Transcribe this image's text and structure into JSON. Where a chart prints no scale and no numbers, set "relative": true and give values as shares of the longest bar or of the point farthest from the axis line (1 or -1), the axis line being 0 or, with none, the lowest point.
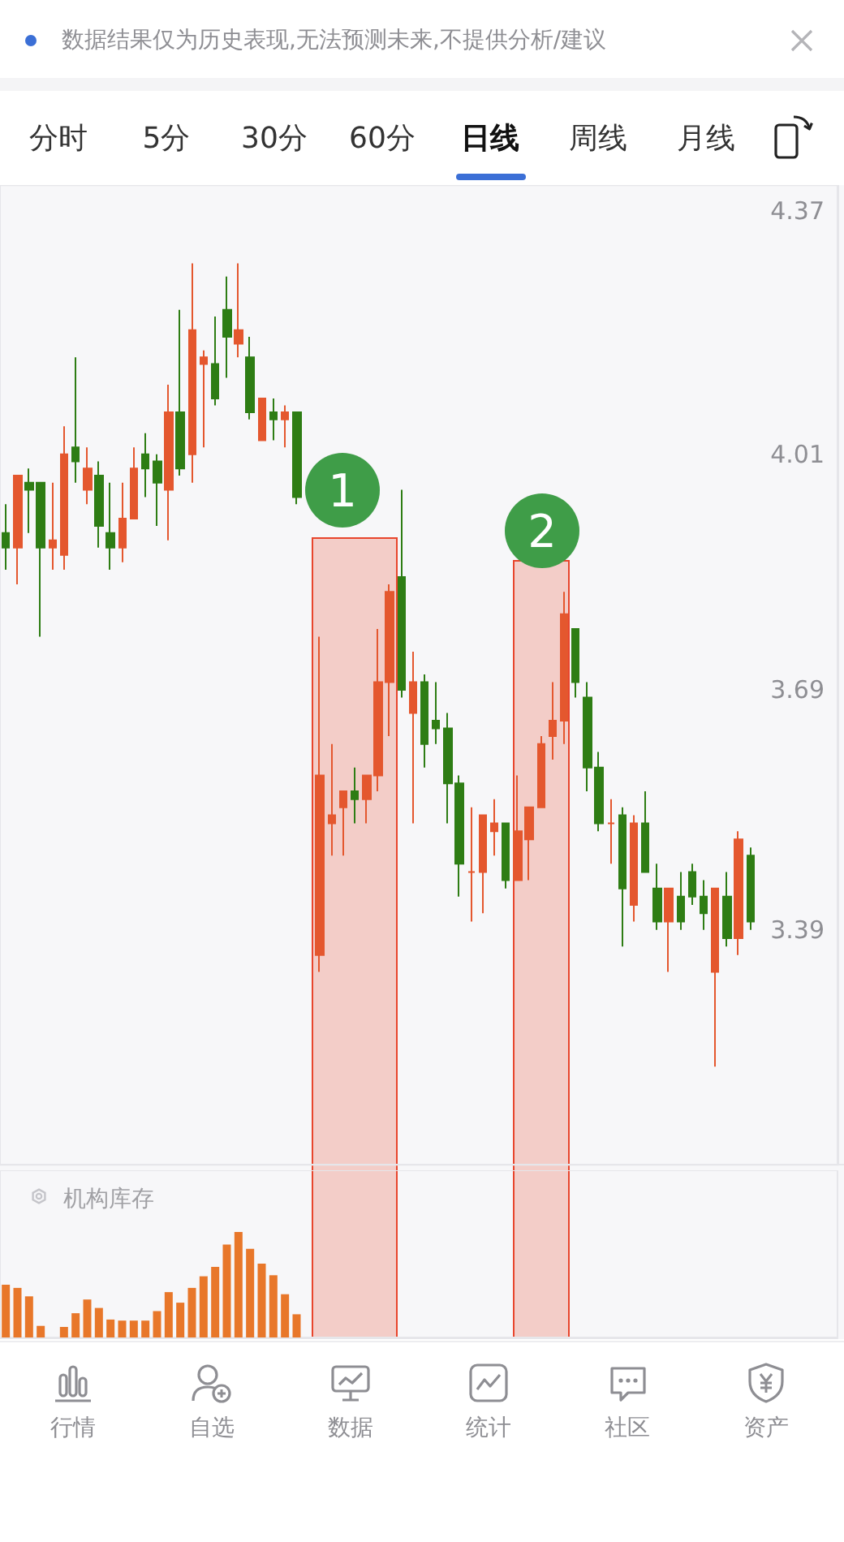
{
  "chart_data": [
    {
      "type": "other",
      "annotations": [
        "数据结果仅为历史表现,无法预测未来,不提供分析/建议",
        "分时",
        "5分",
        "30分",
        "60分",
        "日线",
        "周线",
        "月线"
      ]
    },
    {
      "type": "candlestick",
      "categories": [
        null,
        null,
        null,
        null,
        null,
        null,
        null,
        null,
        null,
        null,
        null,
        null,
        null,
        null,
        null,
        null,
        null,
        null,
        null,
        null,
        null,
        null,
        null,
        null,
        null,
        null,
        null,
        null,
        null,
        null,
        null,
        null,
        null,
        null,
        null,
        null,
        null,
        null,
        null,
        null,
        null,
        null,
        null,
        null,
        null,
        null,
        null,
        null,
        null,
        null,
        null,
        null,
        null,
        null,
        null,
        null,
        null,
        null,
        null,
        null,
        null,
        null,
        null,
        null,
        null,
        null,
        null,
        null,
        null,
        null,
        null,
        null
      ],
      "ohlc": [
        [
          3.9,
          3.94,
          3.85,
          3.88
        ],
        [
          3.88,
          3.98,
          3.83,
          3.98
        ],
        [
          3.97,
          3.99,
          3.9,
          3.96
        ],
        [
          3.97,
          3.97,
          3.76,
          3.88
        ],
        [
          3.88,
          3.97,
          3.85,
          3.89
        ],
        [
          3.87,
          4.05,
          3.85,
          4.01
        ],
        [
          4.02,
          4.15,
          3.97,
          4.0
        ],
        [
          3.96,
          4.02,
          3.94,
          3.99
        ],
        [
          3.98,
          4.0,
          3.88,
          3.91
        ],
        [
          3.9,
          3.97,
          3.85,
          3.88
        ],
        [
          3.88,
          3.97,
          3.86,
          3.92
        ],
        [
          3.92,
          4.02,
          3.92,
          3.99
        ],
        [
          4.01,
          4.04,
          3.95,
          3.99
        ],
        [
          4.0,
          4.01,
          3.91,
          3.97
        ],
        [
          3.96,
          4.11,
          3.89,
          4.07
        ],
        [
          4.07,
          4.22,
          3.98,
          3.99
        ],
        [
          4.01,
          4.29,
          3.97,
          4.19
        ],
        [
          4.14,
          4.16,
          4.02,
          4.15
        ],
        [
          4.14,
          4.21,
          4.08,
          4.09
        ],
        [
          4.22,
          4.27,
          4.12,
          4.18
        ],
        [
          4.17,
          4.29,
          4.15,
          4.19
        ],
        [
          4.15,
          4.18,
          4.06,
          4.07
        ],
        [
          4.03,
          4.09,
          4.03,
          4.09
        ],
        [
          4.07,
          4.09,
          4.03,
          4.06
        ],
        [
          4.06,
          4.08,
          4.02,
          4.07
        ],
        [
          4.07,
          4.07,
          3.94,
          3.95
        ],
        null,
        [
          3.36,
          3.76,
          3.34,
          3.58
        ],
        [
          3.52,
          3.62,
          3.48,
          3.53
        ],
        [
          3.54,
          3.56,
          3.48,
          3.56
        ],
        [
          3.56,
          3.59,
          3.52,
          3.55
        ],
        [
          3.55,
          3.58,
          3.52,
          3.58
        ],
        [
          3.58,
          3.77,
          3.56,
          3.7
        ],
        [
          3.7,
          3.83,
          3.63,
          3.82
        ],
        [
          3.84,
          3.96,
          3.68,
          3.69
        ],
        [
          3.66,
          3.74,
          3.52,
          3.7
        ],
        [
          3.7,
          3.71,
          3.59,
          3.62
        ],
        [
          3.65,
          3.7,
          3.62,
          3.64
        ],
        [
          3.64,
          3.66,
          3.52,
          3.57
        ],
        [
          3.57,
          3.58,
          3.43,
          3.47
        ],
        [
          3.46,
          3.54,
          3.4,
          3.46
        ],
        [
          3.46,
          3.53,
          3.41,
          3.53
        ],
        [
          3.51,
          3.55,
          3.48,
          3.52
        ],
        [
          3.52,
          3.52,
          3.44,
          3.45
        ],
        [
          3.45,
          3.58,
          3.45,
          3.51
        ],
        [
          3.5,
          3.54,
          3.45,
          3.54
        ],
        [
          3.54,
          3.63,
          3.54,
          3.62
        ],
        [
          3.63,
          3.7,
          3.6,
          3.65
        ],
        [
          3.65,
          3.82,
          3.62,
          3.79
        ],
        [
          3.77,
          3.77,
          3.68,
          3.7
        ],
        [
          3.68,
          3.7,
          3.56,
          3.59
        ],
        [
          3.59,
          3.61,
          3.51,
          3.52
        ],
        [
          3.52,
          3.55,
          3.47,
          3.52
        ],
        [
          3.53,
          3.54,
          3.37,
          3.44
        ],
        [
          3.42,
          3.53,
          3.4,
          3.52
        ],
        [
          3.52,
          3.56,
          3.46,
          3.46
        ],
        [
          3.44,
          3.47,
          3.39,
          3.4
        ],
        [
          3.4,
          3.44,
          3.34,
          3.44
        ],
        [
          3.43,
          3.46,
          3.39,
          3.4
        ],
        [
          3.46,
          3.47,
          3.42,
          3.43
        ],
        [
          3.43,
          3.45,
          3.39,
          3.41
        ],
        [
          3.34,
          3.44,
          3.23,
          3.44
        ],
        [
          3.43,
          3.46,
          3.37,
          3.38
        ],
        [
          3.38,
          3.51,
          3.36,
          3.5
        ],
        [
          3.48,
          3.49,
          3.39,
          3.4
        ],
        null,
        null,
        null,
        null,
        null,
        null,
        null
      ],
      "colors": [
        "#2e7d14",
        "#e4572e",
        "#2e7d14",
        "#2e7d14",
        "#e4572e",
        "#e4572e",
        "#2e7d14",
        "#e4572e",
        "#2e7d14",
        "#2e7d14",
        "#e4572e",
        "#e4572e",
        "#2e7d14",
        "#2e7d14",
        "#e4572e",
        "#2e7d14",
        "#e4572e",
        "#e4572e",
        "#2e7d14",
        "#2e7d14",
        "#e4572e",
        "#2e7d14",
        "#e4572e",
        "#2e7d14",
        "#e4572e",
        "#2e7d14",
        null,
        "#e4572e",
        "#e4572e",
        "#e4572e",
        "#2e7d14",
        "#e4572e",
        "#e4572e",
        "#e4572e",
        "#2e7d14",
        "#e4572e",
        "#2e7d14",
        "#2e7d14",
        "#2e7d14",
        "#2e7d14",
        "#e4572e",
        "#e4572e",
        "#e4572e",
        "#2e7d14",
        "#e4572e",
        "#e4572e",
        "#e4572e",
        "#e4572e",
        "#e4572e",
        "#2e7d14",
        "#2e7d14",
        "#2e7d14",
        "#e4572e",
        "#2e7d14",
        "#e4572e",
        "#2e7d14",
        "#2e7d14",
        "#e4572e",
        "#2e7d14",
        "#2e7d14",
        "#2e7d14",
        "#e4572e",
        "#2e7d14",
        "#e4572e",
        "#2e7d14",
        null,
        null,
        null,
        null,
        null,
        null,
        null
      ],
      "ylim": [
        3.12,
        4.41
      ],
      "yticks": [
        3.39,
        3.69,
        4.01,
        4.37
      ],
      "log": "y",
      "tick_labels": "y",
      "annotations": [
        "1",
        "2"
      ]
    },
    {
      "type": "bar",
      "title": "机构库存",
      "categories": [
        null,
        null,
        null,
        null,
        null,
        null,
        null,
        null,
        null,
        null,
        null,
        null,
        null,
        null,
        null,
        null,
        null,
        null,
        null,
        null,
        null,
        null,
        null,
        null,
        null,
        null,
        null,
        null,
        null,
        null,
        null,
        null,
        null,
        null,
        null,
        null,
        null,
        null,
        null,
        null,
        null,
        null,
        null,
        null,
        null,
        null,
        null,
        null,
        null,
        null,
        null,
        null,
        null,
        null,
        null,
        null,
        null,
        null,
        null,
        null,
        null,
        null,
        null,
        null,
        null,
        null,
        null,
        null,
        null,
        null,
        null,
        null
      ],
      "values": [
        0.5,
        0.47,
        0.39,
        0.11,
        null,
        0.1,
        0.23,
        0.36,
        0.28,
        0.17,
        0.16,
        0.16,
        0.16,
        0.25,
        0.43,
        0.33,
        0.47,
        0.58,
        0.67,
        0.88,
        1,
        0.84,
        0.7,
        0.59,
        0.41,
        0.22,
        null,
        null,
        null,
        null,
        null,
        null,
        null,
        null,
        null,
        null,
        null,
        null,
        null,
        null,
        null,
        null,
        null,
        null,
        null,
        null,
        null,
        null,
        null,
        null,
        null,
        null,
        null,
        null,
        null,
        null,
        null,
        null,
        null,
        null,
        null,
        null,
        null,
        null,
        null,
        null,
        null,
        null,
        null,
        null,
        null,
        null
      ],
      "color": "#e8772a",
      "relative": true,
      "tick_labels": false
    },
    {
      "type": "other",
      "annotations": [
        "行情",
        "自选",
        "数据",
        "统计",
        "社区",
        "资产"
      ]
    }
  ]
}
